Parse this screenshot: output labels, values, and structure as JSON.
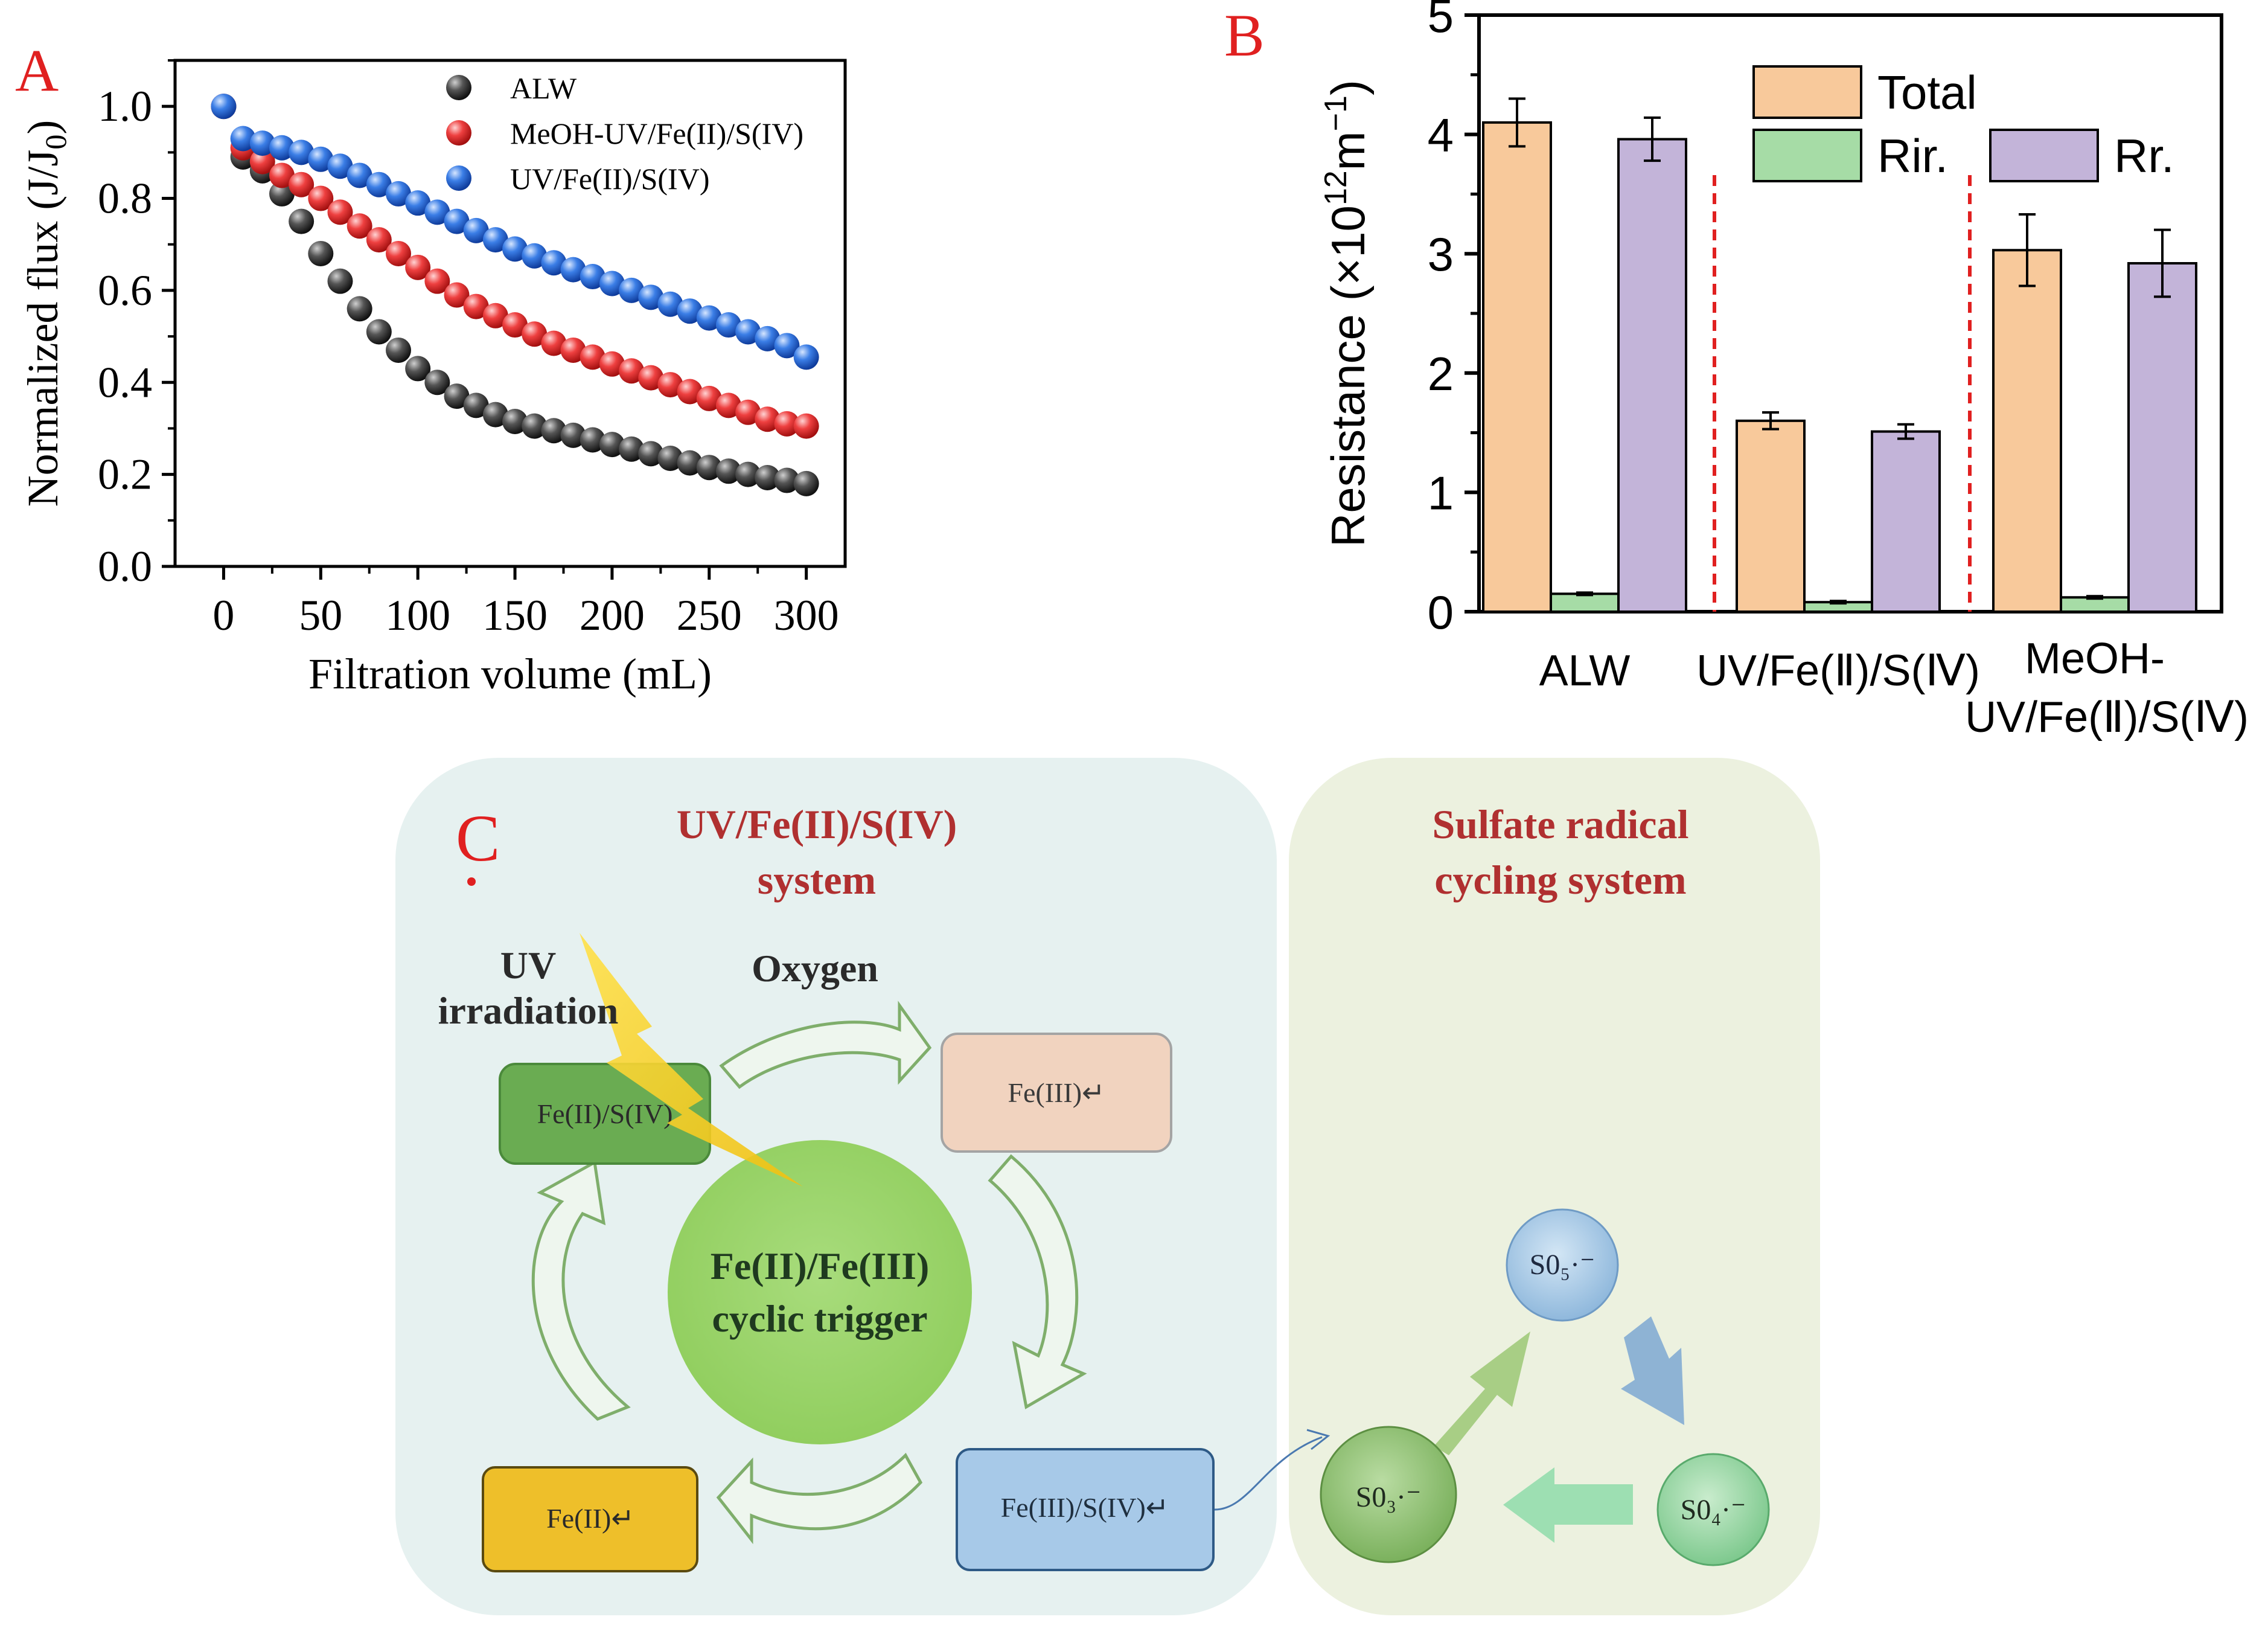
{
  "panels": {
    "a": "A",
    "b": "B",
    "c": "C"
  },
  "chart_data": [
    {
      "type": "scatter",
      "panel": "A",
      "xlabel": "Filtration volume (mL)",
      "ylabel": "Normalized flux (J/J0)",
      "xlim": [
        -25,
        320
      ],
      "ylim": [
        0,
        1.1
      ],
      "xticks": [
        0,
        50,
        100,
        150,
        200,
        250,
        300
      ],
      "yticks": [
        0.0,
        0.2,
        0.4,
        0.6,
        0.8,
        1.0
      ],
      "legend_position": "top-right",
      "series": [
        {
          "name": "ALW",
          "color": "#3a3a3a",
          "x": [
            0,
            10,
            20,
            30,
            40,
            50,
            60,
            70,
            80,
            90,
            100,
            110,
            120,
            130,
            140,
            150,
            160,
            170,
            180,
            190,
            200,
            210,
            220,
            230,
            240,
            250,
            260,
            270,
            280,
            290,
            300
          ],
          "y": [
            1.0,
            0.89,
            0.86,
            0.81,
            0.75,
            0.68,
            0.62,
            0.56,
            0.51,
            0.47,
            0.43,
            0.4,
            0.37,
            0.35,
            0.33,
            0.315,
            0.305,
            0.295,
            0.285,
            0.275,
            0.265,
            0.255,
            0.245,
            0.235,
            0.225,
            0.215,
            0.207,
            0.2,
            0.193,
            0.187,
            0.18
          ]
        },
        {
          "name": "MeOH-UV/Fe(II)/S(IV)",
          "color": "#e53232",
          "x": [
            0,
            10,
            20,
            30,
            40,
            50,
            60,
            70,
            80,
            90,
            100,
            110,
            120,
            130,
            140,
            150,
            160,
            170,
            180,
            190,
            200,
            210,
            220,
            230,
            240,
            250,
            260,
            270,
            280,
            290,
            300
          ],
          "y": [
            1.0,
            0.91,
            0.88,
            0.85,
            0.83,
            0.8,
            0.77,
            0.74,
            0.71,
            0.68,
            0.65,
            0.62,
            0.59,
            0.565,
            0.545,
            0.525,
            0.505,
            0.485,
            0.47,
            0.455,
            0.44,
            0.425,
            0.41,
            0.395,
            0.38,
            0.365,
            0.35,
            0.335,
            0.32,
            0.31,
            0.305
          ]
        },
        {
          "name": "UV/Fe(II)/S(IV)",
          "color": "#2f6fd8",
          "x": [
            0,
            10,
            20,
            30,
            40,
            50,
            60,
            70,
            80,
            90,
            100,
            110,
            120,
            130,
            140,
            150,
            160,
            170,
            180,
            190,
            200,
            210,
            220,
            230,
            240,
            250,
            260,
            270,
            280,
            290,
            300
          ],
          "y": [
            1.0,
            0.93,
            0.92,
            0.91,
            0.9,
            0.885,
            0.87,
            0.85,
            0.83,
            0.81,
            0.79,
            0.77,
            0.75,
            0.73,
            0.71,
            0.69,
            0.675,
            0.66,
            0.645,
            0.63,
            0.615,
            0.6,
            0.585,
            0.57,
            0.555,
            0.54,
            0.525,
            0.51,
            0.495,
            0.48,
            0.455
          ]
        }
      ]
    },
    {
      "type": "bar",
      "panel": "B",
      "ylabel": "Resistance (×10",
      "ylabel_exp": "12",
      "ylabel_unit": "m",
      "ylabel_exp2": "−1",
      "ylabel_close": ")",
      "ylim": [
        0,
        5
      ],
      "yticks": [
        0,
        1,
        2,
        3,
        4,
        5
      ],
      "categories": [
        "ALW",
        "UV/Fe(Ⅱ)/S(Ⅳ)",
        "MeOH-"
      ],
      "category_line2": [
        "",
        "",
        "UV/Fe(Ⅱ)/S(Ⅳ)"
      ],
      "legend_position": "top",
      "series": [
        {
          "name": "Total",
          "color": "#f8c99b",
          "values": [
            4.1,
            1.6,
            3.03
          ],
          "errors": [
            0.2,
            0.07,
            0.3
          ]
        },
        {
          "name": "Rir.",
          "color": "#a6dca6",
          "values": [
            0.15,
            0.08,
            0.12
          ],
          "errors": [
            0.01,
            0.01,
            0.01
          ]
        },
        {
          "name": "Rr.",
          "color": "#c3b4d9",
          "values": [
            3.96,
            1.51,
            2.92
          ],
          "errors": [
            0.18,
            0.06,
            0.28
          ]
        }
      ]
    }
  ],
  "diagram": {
    "left_title_1": "UV/Fe(II)/S(IV)",
    "left_title_2": "system",
    "right_title_1": "Sulfate radical",
    "right_title_2": "cycling system",
    "uv_1": "UV",
    "uv_2": "irradiation",
    "oxygen": "Oxygen",
    "box_fe2s4": "Fe(II)/S(IV)",
    "box_fe3": "Fe(III)↵",
    "box_fe2": "Fe(II)↵",
    "box_fe3s4": "Fe(III)/S(IV)↵",
    "center_1": "Fe(II)/Fe(III)",
    "center_2": "cyclic trigger",
    "so5": "S0₅·⁻",
    "so4": "S0₄·⁻",
    "so3": "S0₃·⁻"
  }
}
